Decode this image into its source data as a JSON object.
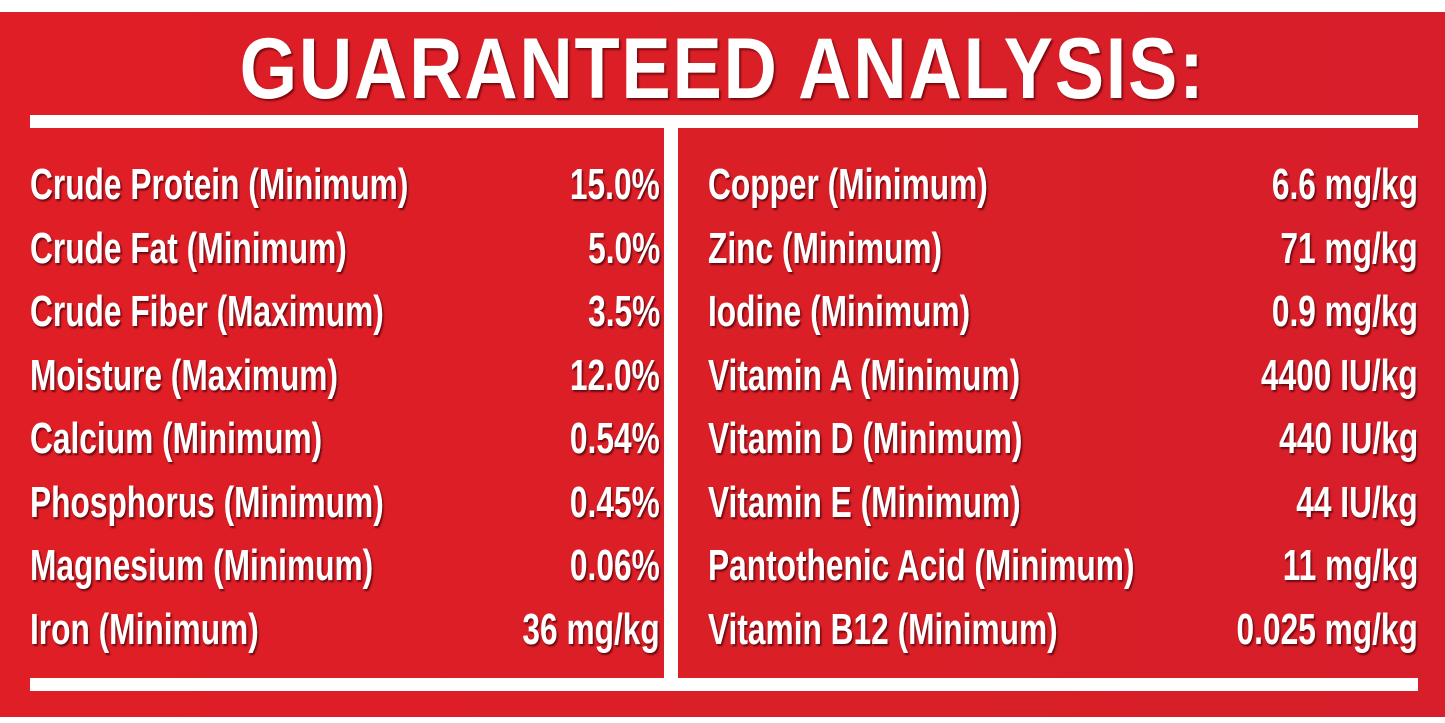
{
  "title": "GUARANTEED ANALYSIS:",
  "colors": {
    "background": "#dc1f27",
    "text": "#ffffff"
  },
  "left_column": [
    {
      "label": "Crude Protein (Minimum)",
      "value": "15.0%"
    },
    {
      "label": "Crude Fat (Minimum)",
      "value": "5.0%"
    },
    {
      "label": "Crude Fiber (Maximum)",
      "value": "3.5%"
    },
    {
      "label": "Moisture (Maximum)",
      "value": "12.0%"
    },
    {
      "label": "Calcium (Minimum)",
      "value": "0.54%"
    },
    {
      "label": "Phosphorus (Minimum)",
      "value": "0.45%"
    },
    {
      "label": "Magnesium (Minimum)",
      "value": "0.06%"
    },
    {
      "label": "Iron (Minimum)",
      "value": "36 mg/kg"
    }
  ],
  "right_column": [
    {
      "label": "Copper (Minimum)",
      "value": "6.6 mg/kg"
    },
    {
      "label": "Zinc (Minimum)",
      "value": "71 mg/kg"
    },
    {
      "label": "Iodine (Minimum)",
      "value": "0.9 mg/kg"
    },
    {
      "label": "Vitamin A (Minimum)",
      "value": "4400 IU/kg"
    },
    {
      "label": "Vitamin D (Minimum)",
      "value": "440 IU/kg"
    },
    {
      "label": "Vitamin E (Minimum)",
      "value": "44 IU/kg"
    },
    {
      "label": "Pantothenic Acid (Minimum)",
      "value": "11 mg/kg"
    },
    {
      "label": "Vitamin B12 (Minimum)",
      "value": "0.025 mg/kg"
    }
  ]
}
